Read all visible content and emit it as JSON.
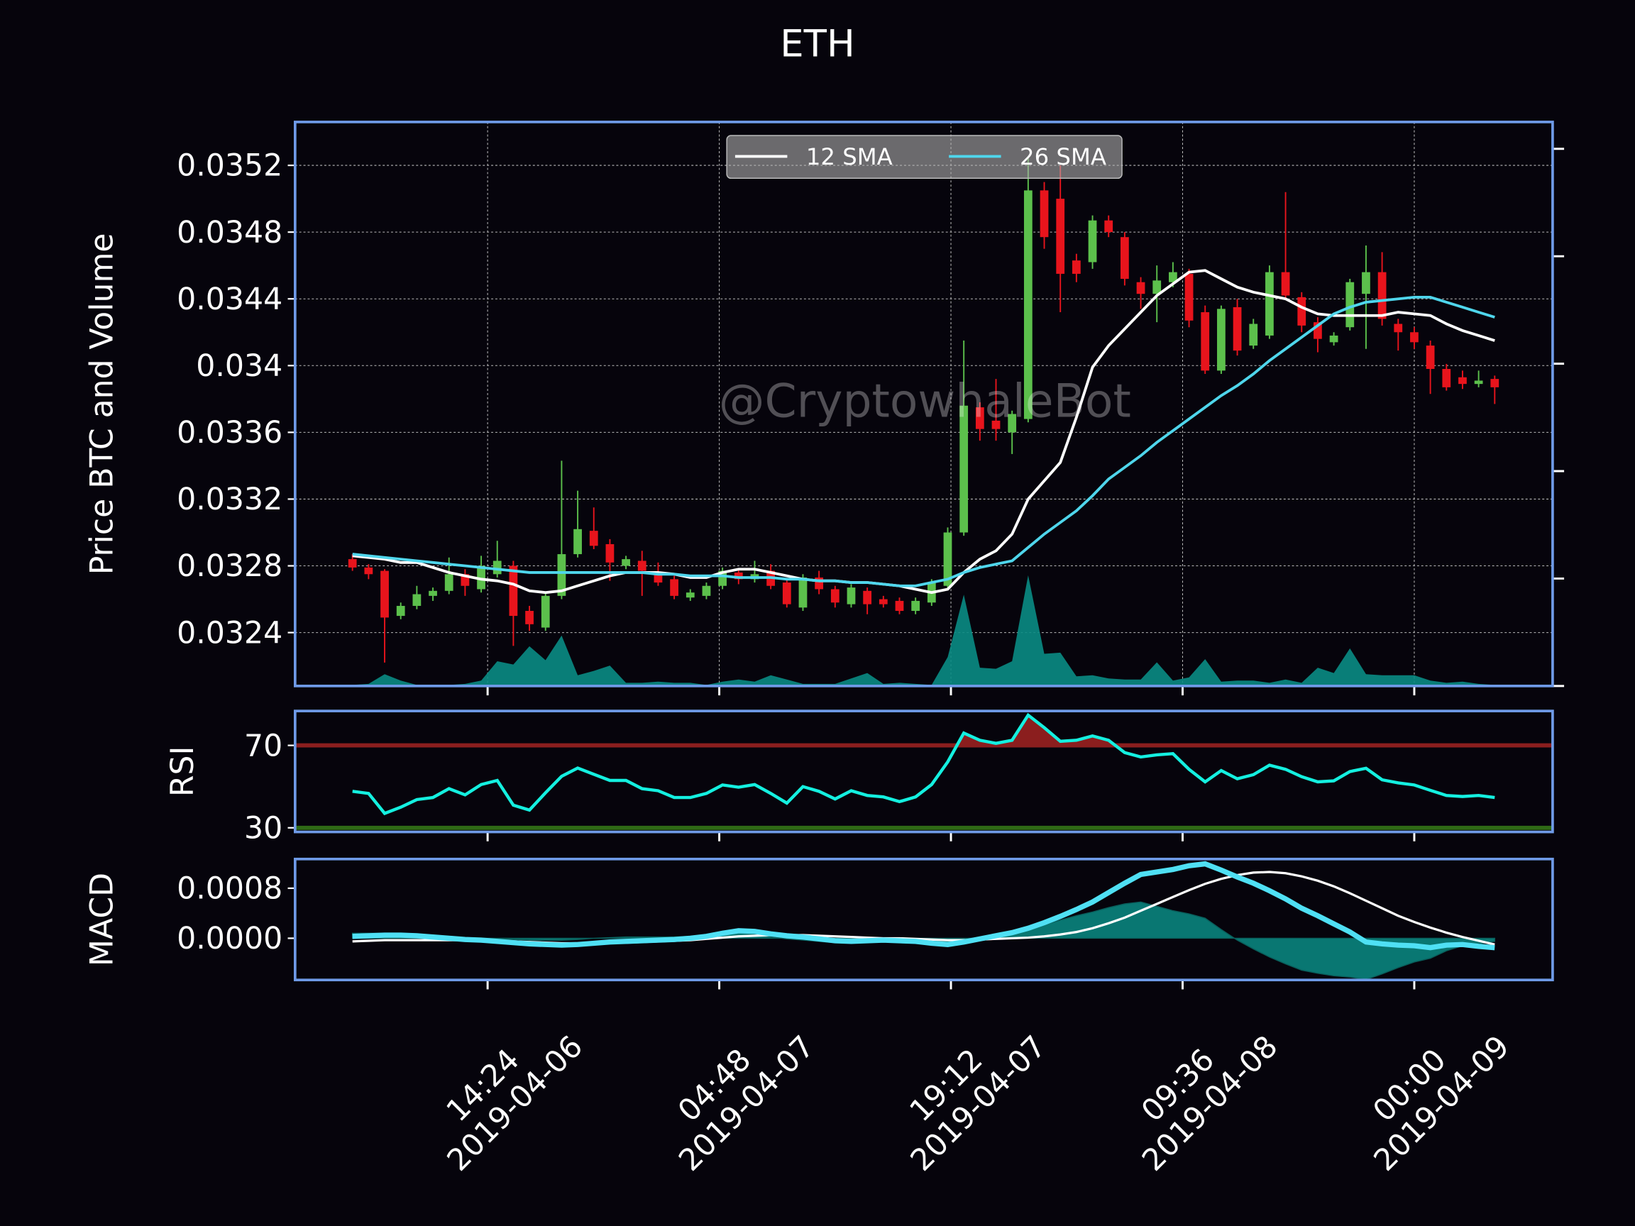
{
  "chart_data": [
    {
      "type": "candlestick",
      "title": "ETH",
      "y_label": "Price BTC and Volume",
      "watermark": "@CryptowhaleBot",
      "x": [
        "2019-04-06 06:00",
        "2019-04-06 07:00",
        "2019-04-06 08:00",
        "2019-04-06 09:00",
        "2019-04-06 10:00",
        "2019-04-06 11:00",
        "2019-04-06 12:00",
        "2019-04-06 13:00",
        "2019-04-06 14:00",
        "2019-04-06 15:00",
        "2019-04-06 16:00",
        "2019-04-06 17:00",
        "2019-04-06 18:00",
        "2019-04-06 19:00",
        "2019-04-06 20:00",
        "2019-04-06 21:00",
        "2019-04-06 22:00",
        "2019-04-06 23:00",
        "2019-04-07 00:00",
        "2019-04-07 01:00",
        "2019-04-07 02:00",
        "2019-04-07 03:00",
        "2019-04-07 04:00",
        "2019-04-07 05:00",
        "2019-04-07 06:00",
        "2019-04-07 07:00",
        "2019-04-07 08:00",
        "2019-04-07 09:00",
        "2019-04-07 10:00",
        "2019-04-07 11:00",
        "2019-04-07 12:00",
        "2019-04-07 13:00",
        "2019-04-07 14:00",
        "2019-04-07 15:00",
        "2019-04-07 16:00",
        "2019-04-07 17:00",
        "2019-04-07 18:00",
        "2019-04-07 19:00",
        "2019-04-07 20:00",
        "2019-04-07 21:00",
        "2019-04-07 22:00",
        "2019-04-07 23:00",
        "2019-04-08 00:00",
        "2019-04-08 01:00",
        "2019-04-08 02:00",
        "2019-04-08 03:00",
        "2019-04-08 04:00",
        "2019-04-08 05:00",
        "2019-04-08 06:00",
        "2019-04-08 07:00",
        "2019-04-08 08:00",
        "2019-04-08 09:00",
        "2019-04-08 10:00",
        "2019-04-08 11:00",
        "2019-04-08 12:00",
        "2019-04-08 13:00",
        "2019-04-08 14:00",
        "2019-04-08 15:00",
        "2019-04-08 16:00",
        "2019-04-08 17:00",
        "2019-04-08 18:00",
        "2019-04-08 19:00",
        "2019-04-08 20:00",
        "2019-04-08 21:00",
        "2019-04-08 22:00",
        "2019-04-08 23:00",
        "2019-04-09 00:00",
        "2019-04-09 01:00",
        "2019-04-09 02:00",
        "2019-04-09 03:00",
        "2019-04-09 04:00",
        "2019-04-09 05:00"
      ],
      "open": [
        0.03284,
        0.03279,
        0.03277,
        0.0325,
        0.03256,
        0.03262,
        0.03265,
        0.03275,
        0.03266,
        0.03275,
        0.0328,
        0.03253,
        0.03243,
        0.03262,
        0.03287,
        0.03301,
        0.03293,
        0.0328,
        0.03283,
        0.03276,
        0.03272,
        0.03261,
        0.03262,
        0.03268,
        0.03276,
        0.03272,
        0.03277,
        0.0327,
        0.03255,
        0.03273,
        0.03266,
        0.03257,
        0.03265,
        0.0326,
        0.03259,
        0.03253,
        0.03258,
        0.03268,
        0.033,
        0.03375,
        0.03367,
        0.0336,
        0.03368,
        0.03505,
        0.035,
        0.03463,
        0.03462,
        0.03487,
        0.03477,
        0.0345,
        0.03443,
        0.0345,
        0.03455,
        0.03432,
        0.03397,
        0.03435,
        0.03412,
        0.03418,
        0.03456,
        0.03441,
        0.03426,
        0.03414,
        0.03423,
        0.03443,
        0.03456,
        0.03425,
        0.0342,
        0.03412,
        0.03398,
        0.03393,
        0.03389,
        0.03392
      ],
      "high": [
        0.03287,
        0.03281,
        0.03278,
        0.03258,
        0.03268,
        0.03267,
        0.03285,
        0.03278,
        0.03286,
        0.03295,
        0.03283,
        0.03256,
        0.03264,
        0.03343,
        0.03325,
        0.03315,
        0.03296,
        0.03286,
        0.03289,
        0.03282,
        0.03274,
        0.03266,
        0.0327,
        0.03279,
        0.03278,
        0.03283,
        0.03281,
        0.03272,
        0.03275,
        0.03277,
        0.03268,
        0.03269,
        0.03267,
        0.03262,
        0.03261,
        0.03261,
        0.03272,
        0.03303,
        0.03415,
        0.03378,
        0.03392,
        0.03373,
        0.03525,
        0.0351,
        0.0352,
        0.03467,
        0.0349,
        0.0349,
        0.0348,
        0.03453,
        0.0346,
        0.03462,
        0.03458,
        0.03436,
        0.03436,
        0.0344,
        0.03428,
        0.0346,
        0.03504,
        0.03444,
        0.03429,
        0.0342,
        0.03452,
        0.03472,
        0.03468,
        0.03428,
        0.03423,
        0.03415,
        0.03401,
        0.03397,
        0.03397,
        0.03394
      ],
      "low": [
        0.03277,
        0.03272,
        0.03222,
        0.03248,
        0.03254,
        0.03259,
        0.03263,
        0.03262,
        0.03264,
        0.03273,
        0.03232,
        0.03241,
        0.03241,
        0.0326,
        0.03285,
        0.0329,
        0.03271,
        0.03278,
        0.03262,
        0.03268,
        0.0326,
        0.03259,
        0.0326,
        0.03266,
        0.03269,
        0.0327,
        0.03266,
        0.03255,
        0.03253,
        0.03263,
        0.03255,
        0.03255,
        0.03251,
        0.03255,
        0.03251,
        0.03251,
        0.03256,
        0.03266,
        0.03298,
        0.03355,
        0.03355,
        0.03347,
        0.03366,
        0.0347,
        0.03432,
        0.0345,
        0.03458,
        0.03477,
        0.03448,
        0.03434,
        0.03426,
        0.03447,
        0.03423,
        0.03395,
        0.03395,
        0.03406,
        0.0341,
        0.03416,
        0.0344,
        0.0342,
        0.03408,
        0.03412,
        0.03421,
        0.0341,
        0.03424,
        0.03409,
        0.0341,
        0.03383,
        0.03385,
        0.03386,
        0.03387,
        0.03377
      ],
      "close": [
        0.03279,
        0.03275,
        0.03249,
        0.03256,
        0.03263,
        0.03265,
        0.03275,
        0.03268,
        0.0328,
        0.03283,
        0.0325,
        0.03245,
        0.03262,
        0.03287,
        0.03302,
        0.03292,
        0.03282,
        0.03284,
        0.03277,
        0.0327,
        0.03262,
        0.03264,
        0.03268,
        0.03277,
        0.03272,
        0.03275,
        0.03268,
        0.03257,
        0.03273,
        0.03266,
        0.03258,
        0.03267,
        0.03257,
        0.03257,
        0.03253,
        0.03259,
        0.0327,
        0.033,
        0.03376,
        0.03362,
        0.03362,
        0.03371,
        0.03505,
        0.03477,
        0.03455,
        0.03455,
        0.03487,
        0.0348,
        0.03452,
        0.03443,
        0.03451,
        0.03456,
        0.03427,
        0.03397,
        0.03434,
        0.03409,
        0.03425,
        0.03456,
        0.03442,
        0.03424,
        0.03416,
        0.03418,
        0.0345,
        0.03456,
        0.03428,
        0.0342,
        0.03414,
        0.03398,
        0.03387,
        0.03389,
        0.03391,
        0.03387
      ],
      "up_color": "#5cc04c",
      "down_color": "#e8141c",
      "series": [
        {
          "name": "12 SMA",
          "color": "#ffffff",
          "values": [
            0.03286,
            0.03285,
            0.03284,
            0.03282,
            0.03282,
            0.03279,
            0.03276,
            0.03274,
            0.03272,
            0.03271,
            0.03269,
            0.03265,
            0.03264,
            0.03265,
            0.03268,
            0.03271,
            0.03274,
            0.03276,
            0.03276,
            0.03276,
            0.03275,
            0.03273,
            0.03273,
            0.03276,
            0.03278,
            0.03278,
            0.03276,
            0.03274,
            0.03272,
            0.03271,
            0.03271,
            0.0327,
            0.0327,
            0.03269,
            0.03268,
            0.03266,
            0.03264,
            0.03266,
            0.03276,
            0.03284,
            0.03289,
            0.03299,
            0.0332,
            0.03331,
            0.03342,
            0.03369,
            0.03399,
            0.03412,
            0.03422,
            0.03432,
            0.03442,
            0.03449,
            0.03456,
            0.03457,
            0.03452,
            0.03447,
            0.03444,
            0.03442,
            0.0344,
            0.03435,
            0.03431,
            0.0343,
            0.0343,
            0.0343,
            0.0343,
            0.03432,
            0.03431,
            0.0343,
            0.03425,
            0.03421,
            0.03418,
            0.03415
          ]
        },
        {
          "name": "26 SMA",
          "color": "#4fd6ec",
          "values": [
            0.03287,
            0.03286,
            0.03285,
            0.03284,
            0.03283,
            0.03282,
            0.03281,
            0.0328,
            0.03279,
            0.03278,
            0.03277,
            0.03276,
            0.03276,
            0.03276,
            0.03276,
            0.03276,
            0.03276,
            0.03276,
            0.03276,
            0.03275,
            0.03275,
            0.03274,
            0.03274,
            0.03274,
            0.03273,
            0.03273,
            0.03273,
            0.03272,
            0.03272,
            0.03271,
            0.03271,
            0.0327,
            0.0327,
            0.03269,
            0.03268,
            0.03268,
            0.0327,
            0.03272,
            0.03276,
            0.03279,
            0.03281,
            0.03283,
            0.03291,
            0.03299,
            0.03306,
            0.03313,
            0.03322,
            0.03332,
            0.03339,
            0.03346,
            0.03354,
            0.03361,
            0.03368,
            0.03375,
            0.03382,
            0.03388,
            0.03395,
            0.03403,
            0.0341,
            0.03417,
            0.03424,
            0.03431,
            0.03435,
            0.03438,
            0.03439,
            0.0344,
            0.03441,
            0.03441,
            0.03438,
            0.03435,
            0.03432,
            0.03429
          ]
        }
      ],
      "volume": {
        "color": "#0a8c84",
        "axis": "y2",
        "values": [
          0.1,
          0.2,
          1.1,
          0.5,
          0.1,
          0.1,
          0.1,
          0.2,
          0.5,
          2.3,
          2.0,
          3.7,
          2.4,
          4.7,
          1.0,
          1.4,
          1.9,
          0.3,
          0.3,
          0.4,
          0.3,
          0.3,
          0.1,
          0.4,
          0.6,
          0.4,
          1.0,
          0.6,
          0.2,
          0.2,
          0.2,
          0.7,
          1.2,
          0.2,
          0.3,
          0.2,
          0.1,
          2.7,
          8.5,
          1.7,
          1.6,
          2.3,
          10.3,
          3.0,
          3.1,
          0.9,
          1.0,
          0.7,
          0.6,
          0.6,
          2.2,
          0.5,
          0.8,
          2.5,
          0.4,
          0.5,
          0.5,
          0.3,
          0.6,
          0.3,
          1.7,
          1.2,
          3.5,
          1.1,
          1.0,
          1.0,
          1.0,
          0.5,
          0.3,
          0.4,
          0.2,
          0.1
        ]
      },
      "xlim": [
        "2019-04-06 02:26",
        "2019-04-09 08:36"
      ],
      "xticks": [
        {
          "value": "2019-04-06 14:24",
          "label": [
            "14:24",
            "2019-04-06"
          ]
        },
        {
          "value": "2019-04-07 04:48",
          "label": [
            "04:48",
            "2019-04-07"
          ]
        },
        {
          "value": "2019-04-07 19:12",
          "label": [
            "19:12",
            "2019-04-07"
          ]
        },
        {
          "value": "2019-04-08 09:36",
          "label": [
            "09:36",
            "2019-04-08"
          ]
        },
        {
          "value": "2019-04-09 00:00",
          "label": [
            "00:00",
            "2019-04-09"
          ]
        }
      ],
      "ylim": [
        0.03208,
        0.03546
      ],
      "yticks": [
        0.0324,
        0.0328,
        0.0332,
        0.0336,
        0.034,
        0.0344,
        0.0348,
        0.0352
      ],
      "y2lim": [
        0,
        52.5
      ],
      "y2ticks": [
        0,
        10,
        20,
        30,
        40,
        50
      ],
      "grid": true,
      "legend": "upper center"
    },
    {
      "type": "line",
      "y_label": "RSI",
      "color": "#14f0e0",
      "values": [
        47.7,
        46.7,
        37,
        40,
        43.7,
        44.7,
        49,
        46,
        51,
        53,
        41,
        38.6,
        47,
        55,
        59,
        56,
        53,
        53,
        49,
        48,
        44.7,
        44.7,
        46.7,
        50.8,
        49.7,
        51,
        46.7,
        42,
        50,
        47.7,
        44,
        48,
        45.7,
        45,
        42.7,
        45,
        51,
        62,
        76,
        72.5,
        71,
        72.5,
        84.7,
        78.6,
        72,
        72.5,
        74.6,
        72.5,
        66.5,
        64.4,
        65.4,
        66,
        58.4,
        52.3,
        57.8,
        53.8,
        55.8,
        60.4,
        58.4,
        54.8,
        52.3,
        52.8,
        57.3,
        58.9,
        53.3,
        51.8,
        50.8,
        48.2,
        45.7,
        45.2,
        45.7,
        44.7
      ],
      "levels": [
        {
          "value": 70,
          "color": "#8b1e1e"
        },
        {
          "value": 30,
          "color": "#2f6a16"
        }
      ],
      "ylim": [
        28,
        86.7
      ],
      "yticks": [
        30,
        70
      ]
    },
    {
      "type": "macd",
      "y_label": "MACD",
      "series": [
        {
          "color": "#4fe0f4",
          "values": [
            3e-05,
            4e-05,
            5e-05,
            5e-05,
            4e-05,
            2e-05,
            0,
            -2e-05,
            -3e-05,
            -5e-05,
            -7e-05,
            -9e-05,
            -0.0001,
            -0.00011,
            -0.0001,
            -8e-05,
            -6e-05,
            -5e-05,
            -4e-05,
            -3e-05,
            -2e-05,
            0,
            3e-05,
            8e-05,
            0.00012,
            0.00011,
            7e-05,
            4e-05,
            2e-05,
            -1e-05,
            -4e-05,
            -5e-05,
            -4e-05,
            -3e-05,
            -4e-05,
            -5e-05,
            -8e-05,
            -0.0001,
            -6e-05,
            -1e-05,
            4e-05,
            9e-05,
            0.00016,
            0.00025,
            0.00035,
            0.00046,
            0.00058,
            0.00073,
            0.00088,
            0.00102,
            0.00106,
            0.0011,
            0.00116,
            0.00119,
            0.00109,
            0.00098,
            0.00088,
            0.00076,
            0.00063,
            0.00048,
            0.00036,
            0.00023,
            0.0001,
            -6e-05,
            -9e-05,
            -0.00011,
            -0.00012,
            -0.00015,
            -0.00011,
            -0.0001,
            -0.00013,
            -0.00015
          ]
        },
        {
          "color": "#ffffff",
          "values": [
            -5e-05,
            -4e-05,
            -3e-05,
            -3e-05,
            -3e-05,
            -3e-05,
            -3e-05,
            -3e-05,
            -3e-05,
            -4e-05,
            -5e-05,
            -6e-05,
            -7e-05,
            -8e-05,
            -8e-05,
            -8e-05,
            -7e-05,
            -7e-05,
            -6e-05,
            -5e-05,
            -4e-05,
            -3e-05,
            -1e-05,
            1e-05,
            3e-05,
            4e-05,
            5e-05,
            5e-05,
            5e-05,
            4e-05,
            3e-05,
            2e-05,
            1e-05,
            0,
            0,
            -1e-05,
            -2e-05,
            -3e-05,
            -3e-05,
            -2e-05,
            -1e-05,
            0,
            1e-05,
            3e-05,
            6e-05,
            0.0001,
            0.00016,
            0.00024,
            0.00033,
            0.00044,
            0.00055,
            0.00066,
            0.00077,
            0.00087,
            0.00095,
            0.00101,
            0.00105,
            0.00106,
            0.00104,
            0.00099,
            0.00092,
            0.00083,
            0.00072,
            0.0006,
            0.00048,
            0.00036,
            0.00026,
            0.00017,
            9e-05,
            2e-05,
            -4e-05,
            -0.0001
          ]
        }
      ],
      "histogram": {
        "color": "#0a8c84",
        "values": [
          8e-05,
          8e-05,
          8e-05,
          8e-05,
          7e-05,
          5e-05,
          3e-05,
          1e-05,
          0,
          -1e-05,
          -2e-05,
          -3e-05,
          -3e-05,
          -3e-05,
          -2e-05,
          0,
          1e-05,
          2e-05,
          2e-05,
          2e-05,
          2e-05,
          3e-05,
          4e-05,
          7e-05,
          9e-05,
          7e-05,
          2e-05,
          -1e-05,
          -3e-05,
          -5e-05,
          -7e-05,
          -7e-05,
          -5e-05,
          -3e-05,
          -4e-05,
          -4e-05,
          -6e-05,
          -7e-05,
          -3e-05,
          1e-05,
          5e-05,
          9e-05,
          0.00015,
          0.00022,
          0.00029,
          0.00036,
          0.00042,
          0.00049,
          0.00055,
          0.00058,
          0.00051,
          0.00044,
          0.00039,
          0.00032,
          0.00014,
          -3e-05,
          -0.00017,
          -0.0003,
          -0.00041,
          -0.00051,
          -0.00056,
          -0.0006,
          -0.00062,
          -0.00066,
          -0.00057,
          -0.00047,
          -0.00038,
          -0.00032,
          -0.0002,
          -0.00012,
          -9e-05,
          -5e-05
        ]
      },
      "ylim": [
        -0.000667,
        0.001267
      ],
      "yticks": [
        {
          "value": 0,
          "label": "0.0000"
        },
        {
          "value": 0.0008,
          "label": "0.0008"
        }
      ]
    }
  ]
}
